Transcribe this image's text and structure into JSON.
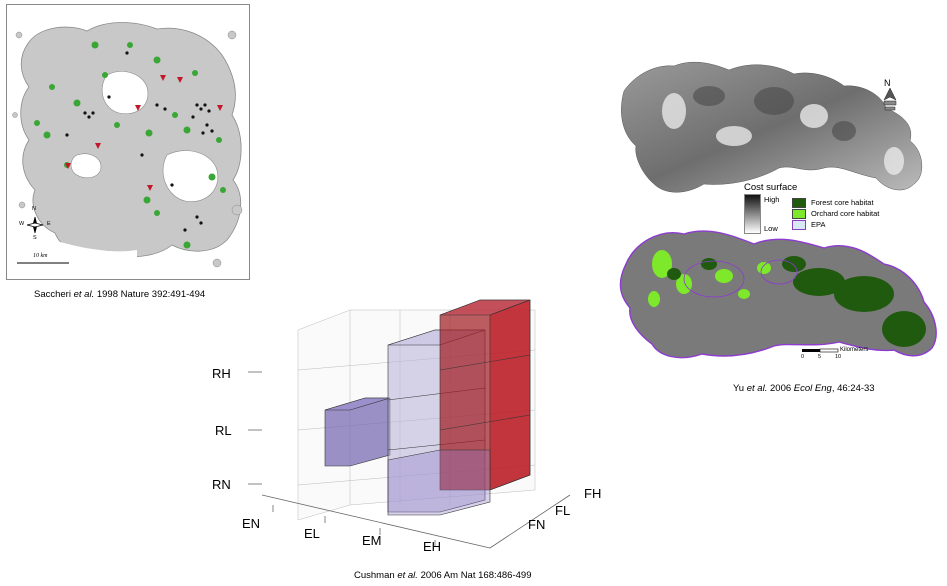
{
  "panels": {
    "saccheri": {
      "caption_prefix": "Saccheri",
      "caption_etal": "et al.",
      "caption_rest": "1998 Nature 392:491-494",
      "compass": {
        "n": "N",
        "s": "S",
        "e": "E",
        "w": "W"
      },
      "scalebar_label": "10 km"
    },
    "yu": {
      "cost_surface_title": "Cost surface",
      "cost_high": "High",
      "cost_low": "Low",
      "legend": [
        {
          "label": "Forest core habitat",
          "color": "#1f5a0e"
        },
        {
          "label": "Orchard core habitat",
          "color": "#7ee82a"
        },
        {
          "label": "EPA",
          "color": "#d8e8f8"
        }
      ],
      "north": "N",
      "scale_ticks": [
        "0",
        "5",
        "10"
      ],
      "scale_unit": "Kilometers",
      "caption_prefix": "Yu",
      "caption_etal": "et al.",
      "caption_mid": "2006",
      "caption_journal": "Ecol Eng",
      "caption_rest": ", 46:24-33"
    },
    "cushman": {
      "y_ticks": [
        "RH",
        "RL",
        "RN"
      ],
      "x_ticks": [
        "EN",
        "EL",
        "EM",
        "EH"
      ],
      "z_ticks": [
        "FN",
        "FL",
        "FH"
      ],
      "caption_prefix": "Cushman",
      "caption_etal": "et al.",
      "caption_rest": "2006 Am Nat 168:486-499"
    }
  },
  "colors": {
    "map_gray": "#c8c8c8",
    "site_green": "#3aa635",
    "site_red": "#c0182a",
    "cube_purple": "#7b6cb4",
    "cube_red": "#a01820"
  }
}
